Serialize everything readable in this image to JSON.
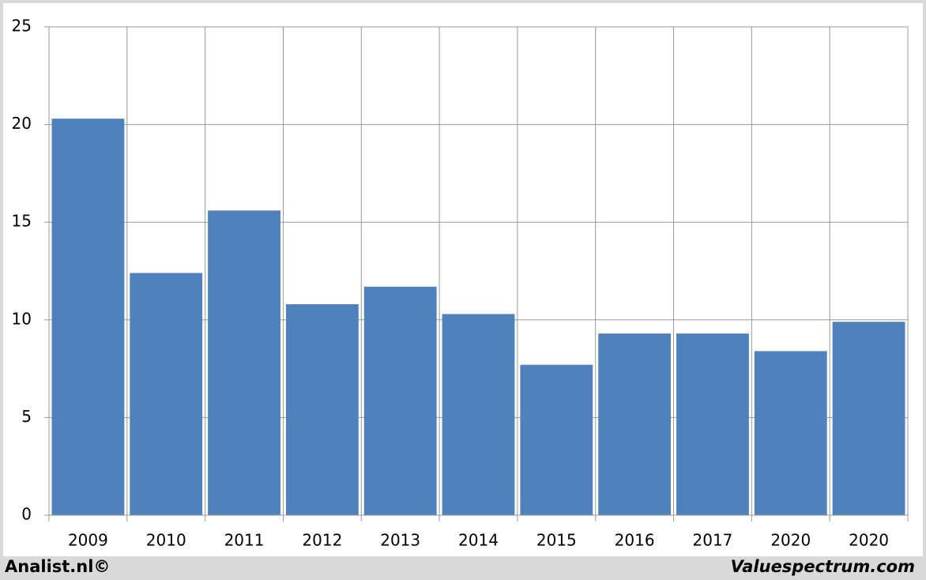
{
  "chart_data": {
    "type": "bar",
    "categories": [
      "2009",
      "2010",
      "2011",
      "2012",
      "2013",
      "2014",
      "2015",
      "2016",
      "2017",
      "2020",
      "2020"
    ],
    "values": [
      20.3,
      12.4,
      15.6,
      10.8,
      11.7,
      10.3,
      7.7,
      9.3,
      9.3,
      8.4,
      9.9
    ],
    "color": "#4f81bd",
    "ylim": [
      0,
      25
    ],
    "yticks": [
      0,
      5,
      10,
      15,
      20,
      25
    ],
    "grid": true,
    "credits": [
      "Analist.nl©",
      "Valuespectrum.com"
    ]
  }
}
